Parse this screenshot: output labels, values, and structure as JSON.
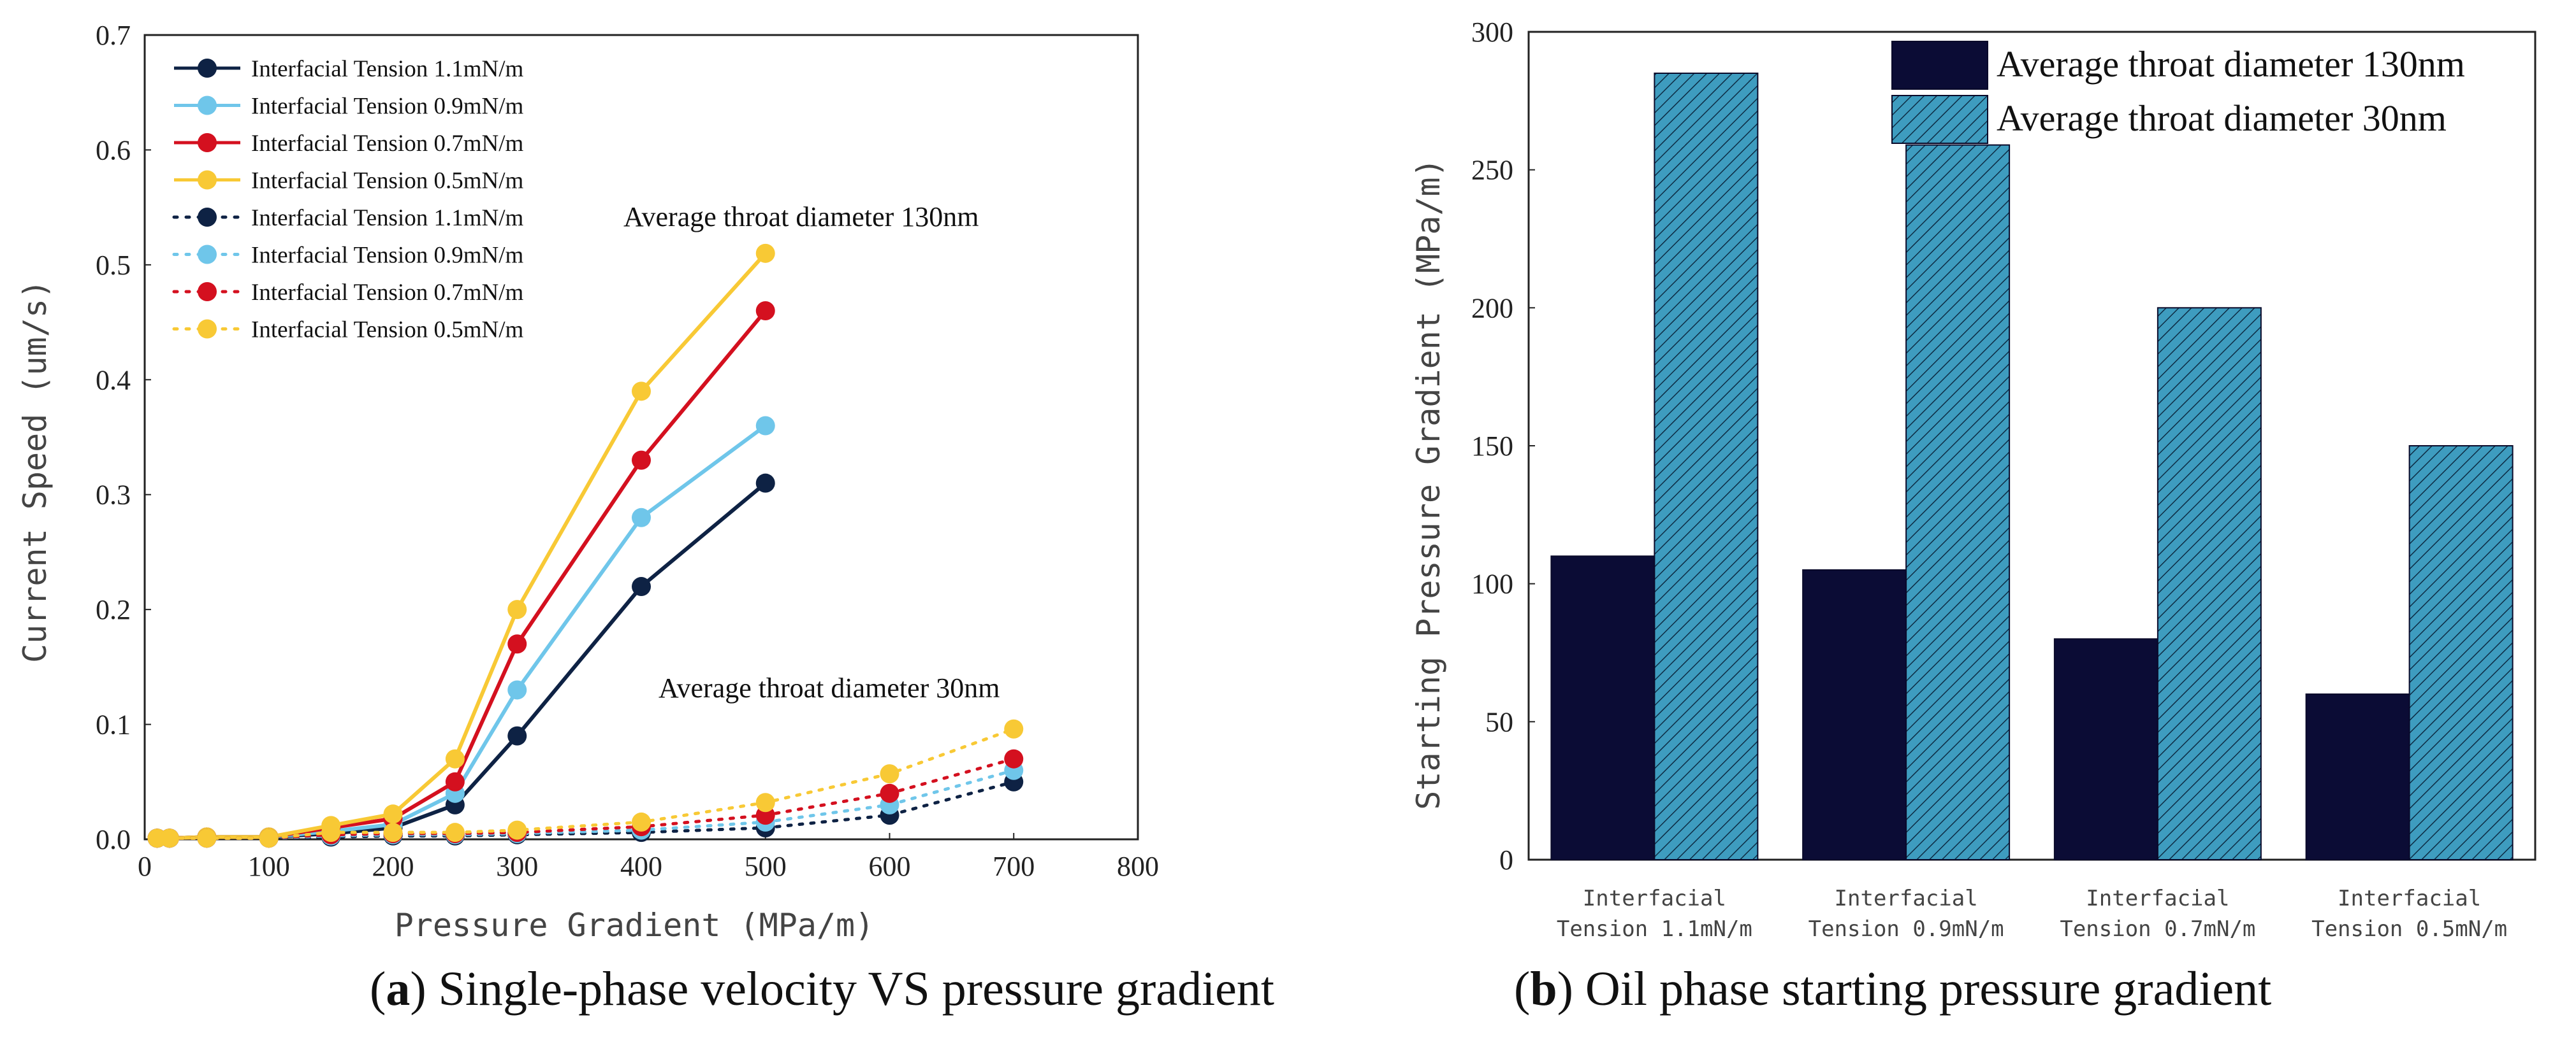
{
  "captions": {
    "a": {
      "label": "a",
      "text": ") Single-phase velocity VS pressure gradient"
    },
    "b": {
      "label": "b",
      "text": ") Oil phase starting pressure gradient"
    }
  },
  "colors": {
    "navy": "#0e2244",
    "lightblue": "#6fc6ea",
    "red": "#d4101f",
    "yellow": "#f8c935",
    "bar_dark": "#0b0c35",
    "bar_hatch": "#3e9cbf"
  },
  "chart_data": [
    {
      "type": "line",
      "title": "",
      "xlabel": "Pressure Gradient (MPa/m)",
      "ylabel": "Current Speed (um/s)",
      "xlim": [
        0,
        800
      ],
      "ylim": [
        0,
        0.7
      ],
      "xticks": [
        "0",
        "100",
        "200",
        "300",
        "400",
        "500",
        "600",
        "700",
        "800"
      ],
      "yticks": [
        "0.0",
        "0.1",
        "0.2",
        "0.3",
        "0.4",
        "0.5",
        "0.6",
        "0.7"
      ],
      "annotations": [
        "Average throat diameter 130nm",
        "Average throat diameter 30nm"
      ],
      "series": [
        {
          "name": "Interfacial Tension 1.1mN/m",
          "color": "#0e2244",
          "style": "solid",
          "x": [
            10,
            20,
            50,
            100,
            150,
            200,
            250,
            300,
            400,
            500
          ],
          "y": [
            0.001,
            0.001,
            0.002,
            0.002,
            0.005,
            0.01,
            0.03,
            0.09,
            0.22,
            0.31
          ]
        },
        {
          "name": "Interfacial Tension 0.9mN/m",
          "color": "#6fc6ea",
          "style": "solid",
          "x": [
            10,
            20,
            50,
            100,
            150,
            200,
            250,
            300,
            400,
            500
          ],
          "y": [
            0.001,
            0.001,
            0.002,
            0.002,
            0.007,
            0.013,
            0.04,
            0.13,
            0.28,
            0.36
          ]
        },
        {
          "name": "Interfacial Tension 0.7mN/m",
          "color": "#d4101f",
          "style": "solid",
          "x": [
            10,
            20,
            50,
            100,
            150,
            200,
            250,
            300,
            400,
            500
          ],
          "y": [
            0.001,
            0.001,
            0.002,
            0.002,
            0.01,
            0.018,
            0.05,
            0.17,
            0.33,
            0.46
          ]
        },
        {
          "name": "Interfacial Tension 0.5mN/m",
          "color": "#f8c935",
          "style": "solid",
          "x": [
            10,
            20,
            50,
            100,
            150,
            200,
            250,
            300,
            400,
            500
          ],
          "y": [
            0.001,
            0.001,
            0.002,
            0.002,
            0.012,
            0.022,
            0.07,
            0.2,
            0.39,
            0.51
          ]
        },
        {
          "name": "Interfacial Tension 1.1mN/m",
          "color": "#0e2244",
          "style": "dotted",
          "x": [
            10,
            20,
            50,
            100,
            150,
            200,
            250,
            300,
            400,
            500,
            600,
            700
          ],
          "y": [
            0.001,
            0.001,
            0.001,
            0.001,
            0.002,
            0.003,
            0.003,
            0.004,
            0.006,
            0.01,
            0.021,
            0.05
          ]
        },
        {
          "name": "Interfacial Tension 0.9mN/m",
          "color": "#6fc6ea",
          "style": "dotted",
          "x": [
            10,
            20,
            50,
            100,
            150,
            200,
            250,
            300,
            400,
            500,
            600,
            700
          ],
          "y": [
            0.001,
            0.001,
            0.001,
            0.001,
            0.003,
            0.004,
            0.004,
            0.005,
            0.008,
            0.015,
            0.03,
            0.06
          ]
        },
        {
          "name": "Interfacial Tension 0.7mN/m",
          "color": "#d4101f",
          "style": "dotted",
          "x": [
            10,
            20,
            50,
            100,
            150,
            200,
            250,
            300,
            400,
            500,
            600,
            700
          ],
          "y": [
            0.001,
            0.001,
            0.001,
            0.001,
            0.004,
            0.005,
            0.005,
            0.006,
            0.011,
            0.021,
            0.04,
            0.07
          ]
        },
        {
          "name": "Interfacial Tension 0.5mN/m",
          "color": "#f8c935",
          "style": "dotted",
          "x": [
            10,
            20,
            50,
            100,
            150,
            200,
            250,
            300,
            400,
            500,
            600,
            700
          ],
          "y": [
            0.001,
            0.001,
            0.001,
            0.001,
            0.006,
            0.006,
            0.006,
            0.008,
            0.015,
            0.032,
            0.057,
            0.096
          ]
        }
      ]
    },
    {
      "type": "bar",
      "title": "",
      "xlabel": "",
      "ylabel": "Starting Pressure Gradient (MPa/m)",
      "ylim": [
        0,
        300
      ],
      "yticks": [
        "0",
        "50",
        "100",
        "150",
        "200",
        "250",
        "300"
      ],
      "categories": [
        [
          "Interfacial",
          "Tension 1.1mN/m"
        ],
        [
          "Interfacial",
          "Tension 0.9mN/m"
        ],
        [
          "Interfacial",
          "Tension 0.7mN/m"
        ],
        [
          "Interfacial",
          "Tension 0.5mN/m"
        ]
      ],
      "series": [
        {
          "name": "Average throat diameter 130nm",
          "color": "#0b0c35",
          "fill": "solid",
          "values": [
            110,
            105,
            80,
            60
          ]
        },
        {
          "name": "Average throat diameter 30nm",
          "color": "#3e9cbf",
          "fill": "hatched",
          "values": [
            285,
            259,
            200,
            150
          ]
        }
      ]
    }
  ]
}
